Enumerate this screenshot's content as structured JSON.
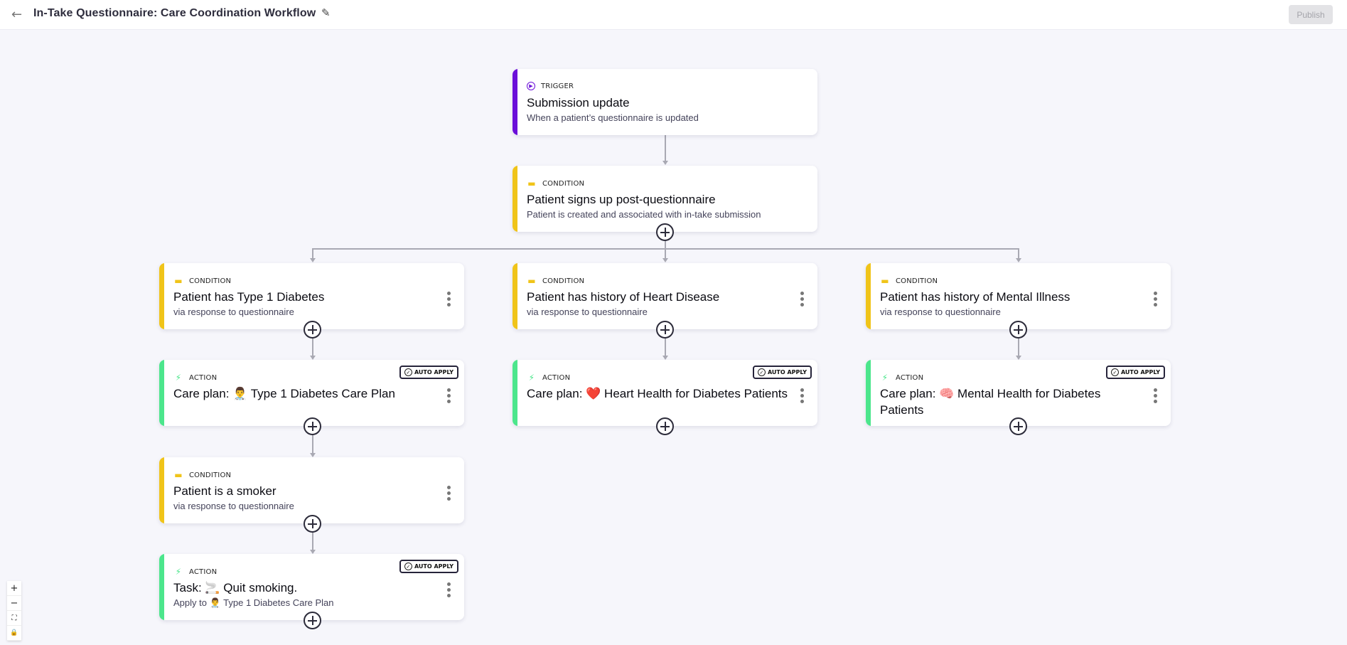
{
  "header": {
    "title": "In-Take Questionnaire: Care Coordination Workflow",
    "back_icon": "arrow-left-icon",
    "edit_icon": "pencil-icon",
    "publish_label": "Publish"
  },
  "colors": {
    "trigger": "#6b0fd9",
    "condition": "#f0c419",
    "action": "#4ce68c",
    "background": "#f6f6fb"
  },
  "auto_apply_label": "AUTO APPLY",
  "nodes": {
    "trigger": {
      "kind": "TRIGGER",
      "title": "Submission update",
      "subtitle": "When a patient’s questionnaire is updated"
    },
    "signup": {
      "kind": "CONDITION",
      "title": "Patient signs up post-questionnaire",
      "subtitle": "Patient is created and associated with in-take submission"
    },
    "diabetes": {
      "kind": "CONDITION",
      "title": "Patient has Type 1 Diabetes",
      "subtitle": "via response to questionnaire"
    },
    "heart": {
      "kind": "CONDITION",
      "title": "Patient has history of Heart Disease",
      "subtitle": "via response to questionnaire"
    },
    "mental": {
      "kind": "CONDITION",
      "title": "Patient has history of Mental Illness",
      "subtitle": "via response to questionnaire"
    },
    "diabetes_plan": {
      "kind": "ACTION",
      "title": "Care plan: 👨‍⚕️ Type 1 Diabetes Care Plan",
      "auto_apply": true
    },
    "heart_plan": {
      "kind": "ACTION",
      "title": "Care plan: ❤️ Heart Health for Diabetes Patients",
      "auto_apply": true
    },
    "mental_plan": {
      "kind": "ACTION",
      "title": "Care plan: 🧠 Mental Health for Diabetes Patients",
      "auto_apply": true
    },
    "smoker": {
      "kind": "CONDITION",
      "title": "Patient is a smoker",
      "subtitle": "via response to questionnaire"
    },
    "quit_task": {
      "kind": "ACTION",
      "title": "Task: 🚬 Quit smoking.",
      "subtitle": "Apply to 👨‍⚕️ Type 1 Diabetes Care Plan",
      "auto_apply": true
    }
  },
  "canvas_controls": {
    "zoom_in": "+",
    "zoom_out": "−",
    "fit": "⛶",
    "lock": "🔒"
  }
}
